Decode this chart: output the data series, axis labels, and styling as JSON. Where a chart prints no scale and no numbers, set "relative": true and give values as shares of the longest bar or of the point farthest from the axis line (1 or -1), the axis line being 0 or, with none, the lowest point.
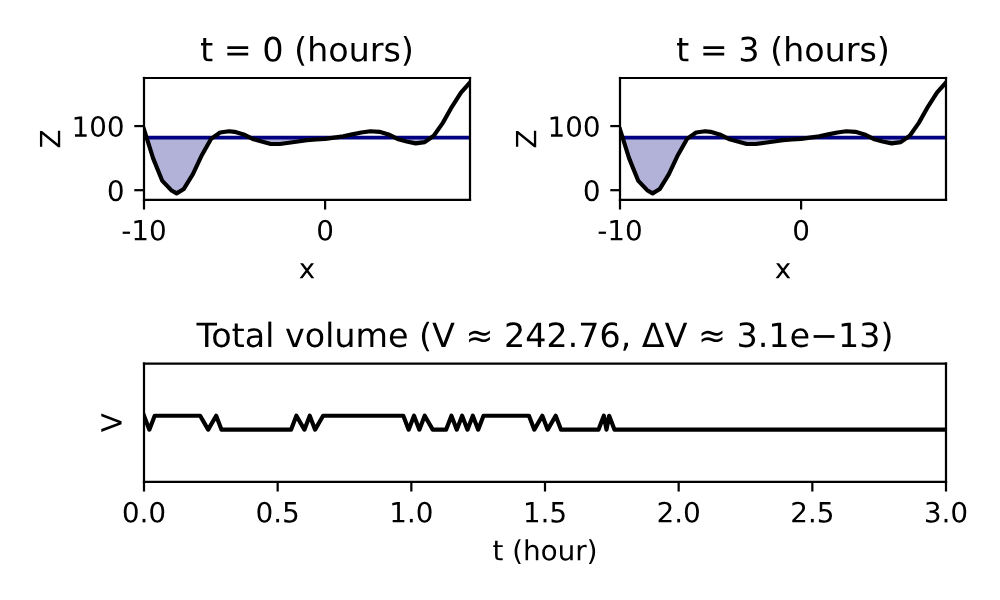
{
  "chart_data": [
    {
      "type": "line",
      "title": "t = 0 (hours)",
      "xlabel": "x",
      "ylabel": "Z",
      "xlim": [
        -10,
        8
      ],
      "ylim": [
        -15,
        175
      ],
      "xticks": [
        -10,
        0
      ],
      "yticks": [
        0,
        100
      ],
      "grid": false,
      "marker": "none",
      "line_style": "solid",
      "x": [
        -10,
        -9.5,
        -9,
        -8.5,
        -8.2,
        -7.8,
        -7.3,
        -6.8,
        -6.3,
        -5.8,
        -5.3,
        -5,
        -4.5,
        -4,
        -3.5,
        -3,
        -2.5,
        -2,
        -1.5,
        -1,
        -0.5,
        0,
        0.5,
        1,
        1.5,
        2,
        2.5,
        3,
        3.5,
        4,
        4.5,
        5,
        5.5,
        6,
        6.5,
        7,
        7.5,
        8
      ],
      "series": [
        {
          "color": "#000080",
          "values": [
            82,
            82,
            82,
            82,
            82,
            82,
            82,
            82,
            82,
            82,
            82,
            82,
            82,
            82,
            82,
            82,
            82,
            82,
            82,
            82,
            82,
            82,
            82,
            82,
            82,
            82,
            82,
            82,
            82,
            82,
            82,
            82,
            82,
            82,
            82,
            82,
            82,
            82
          ],
          "lower": [
            95,
            50,
            15,
            0,
            -5,
            2,
            25,
            55,
            80,
            null,
            null,
            null,
            null,
            80,
            76,
            72,
            72,
            74,
            76,
            78,
            79,
            80,
            null,
            null,
            null,
            null,
            null,
            null,
            null,
            80,
            76,
            73,
            75,
            80,
            null,
            null,
            null,
            null
          ],
          "upper": [
            82,
            82,
            82,
            82,
            82,
            82,
            82,
            82,
            82,
            null,
            null,
            null,
            null,
            82,
            82,
            82,
            82,
            82,
            82,
            82,
            82,
            82,
            null,
            null,
            null,
            null,
            null,
            null,
            null,
            82,
            82,
            82,
            82,
            82,
            null,
            null,
            null,
            null
          ]
        },
        {
          "color": "#000000",
          "values": [
            95,
            50,
            15,
            0,
            -5,
            2,
            25,
            55,
            80,
            90,
            92,
            91,
            87,
            80,
            76,
            72,
            72,
            74,
            76,
            78,
            79,
            80,
            82,
            84,
            87,
            90,
            92,
            91,
            87,
            80,
            76,
            73,
            75,
            85,
            105,
            130,
            152,
            168
          ]
        }
      ]
    },
    {
      "type": "line",
      "title": "t = 3 (hours)",
      "xlabel": "x",
      "ylabel": "Z",
      "xlim": [
        -10,
        8
      ],
      "ylim": [
        -15,
        175
      ],
      "xticks": [
        -10,
        0
      ],
      "yticks": [
        0,
        100
      ],
      "grid": false,
      "marker": "none",
      "line_style": "solid",
      "x": [
        -10,
        -9.5,
        -9,
        -8.5,
        -8.2,
        -7.8,
        -7.3,
        -6.8,
        -6.3,
        -5.8,
        -5.3,
        -5,
        -4.5,
        -4,
        -3.5,
        -3,
        -2.5,
        -2,
        -1.5,
        -1,
        -0.5,
        0,
        0.5,
        1,
        1.5,
        2,
        2.5,
        3,
        3.5,
        4,
        4.5,
        5,
        5.5,
        6,
        6.5,
        7,
        7.5,
        8
      ],
      "series": [
        {
          "color": "#000080",
          "values": [
            82,
            82,
            82,
            82,
            82,
            82,
            82,
            82,
            82,
            82,
            82,
            82,
            82,
            82,
            82,
            82,
            82,
            82,
            82,
            82,
            82,
            82,
            82,
            82,
            82,
            82,
            82,
            82,
            82,
            82,
            82,
            82,
            82,
            82,
            82,
            82,
            82,
            82
          ],
          "lower": [
            95,
            50,
            15,
            0,
            -5,
            2,
            25,
            55,
            80,
            null,
            null,
            null,
            null,
            80,
            76,
            72,
            72,
            74,
            76,
            78,
            79,
            80,
            null,
            null,
            null,
            null,
            null,
            null,
            null,
            80,
            76,
            73,
            75,
            80,
            null,
            null,
            null,
            null
          ],
          "upper": [
            82,
            82,
            82,
            82,
            82,
            82,
            82,
            82,
            82,
            null,
            null,
            null,
            null,
            82,
            82,
            82,
            82,
            82,
            82,
            82,
            82,
            82,
            null,
            null,
            null,
            null,
            null,
            null,
            null,
            82,
            82,
            82,
            82,
            82,
            null,
            null,
            null,
            null
          ]
        },
        {
          "color": "#000000",
          "values": [
            95,
            50,
            15,
            0,
            -5,
            2,
            25,
            55,
            80,
            90,
            92,
            91,
            87,
            80,
            76,
            72,
            72,
            74,
            76,
            78,
            79,
            80,
            82,
            84,
            87,
            90,
            92,
            91,
            87,
            80,
            76,
            73,
            75,
            85,
            105,
            130,
            152,
            168
          ]
        }
      ]
    },
    {
      "type": "line",
      "title": "Total volume (V ≈ 242.76, ΔV ≈ 3.1e−13)",
      "xlabel": "t (hour)",
      "ylabel": "V",
      "relative": true,
      "xlim": [
        0,
        3
      ],
      "xticks": [
        {
          "value": 0,
          "label": "0.0"
        },
        {
          "value": 0.5,
          "label": "0.5"
        },
        {
          "value": 1,
          "label": "1.0"
        },
        {
          "value": 1.5,
          "label": "1.5"
        },
        {
          "value": 2,
          "label": "2.0"
        },
        {
          "value": 2.5,
          "label": "2.5"
        },
        {
          "value": 3,
          "label": "3.0"
        }
      ],
      "grid": false,
      "marker": "none",
      "line_style": "solid",
      "series": [
        {
          "color": "#000000",
          "x": [
            0,
            0.02,
            0.04,
            0.21,
            0.24,
            0.27,
            0.29,
            0.55,
            0.57,
            0.6,
            0.62,
            0.64,
            0.67,
            0.97,
            0.99,
            1.01,
            1.03,
            1.05,
            1.08,
            1.13,
            1.15,
            1.17,
            1.19,
            1.21,
            1.23,
            1.25,
            1.27,
            1.44,
            1.46,
            1.49,
            1.51,
            1.54,
            1.56,
            1.7,
            1.72,
            1.73,
            1.74,
            1.76,
            3
          ],
          "values": [
            1,
            0.79,
            1,
            1,
            0.79,
            1,
            0.79,
            0.79,
            1,
            0.79,
            1,
            0.79,
            1,
            1,
            0.79,
            1,
            0.79,
            1,
            0.79,
            0.79,
            1,
            0.79,
            1,
            0.79,
            1,
            0.79,
            1,
            1,
            0.79,
            1,
            0.79,
            1,
            0.79,
            0.79,
            1,
            0.79,
            1,
            0.79,
            0.79
          ]
        }
      ]
    }
  ]
}
